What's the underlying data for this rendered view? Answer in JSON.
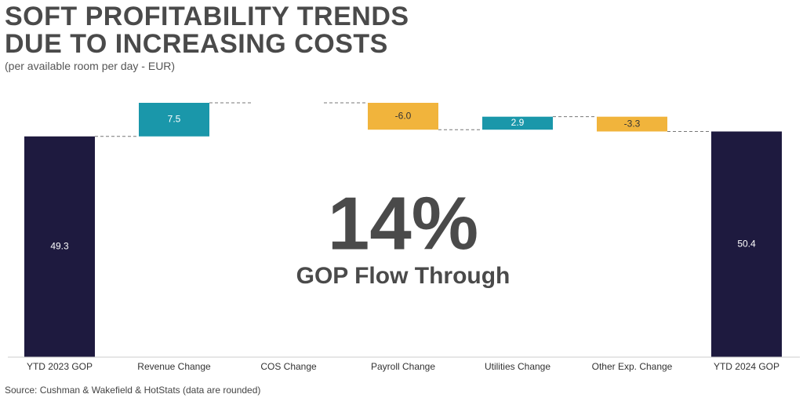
{
  "chart_data": {
    "type": "waterfall",
    "title": "SOFT PROFITABILITY TRENDS DUE TO INCREASING COSTS",
    "subtitle": "(per available room per day - EUR)",
    "categories": [
      "YTD 2023 GOP",
      "Revenue Change",
      "COS Change",
      "Payroll Change",
      "Utilities Change",
      "Other Exp. Change",
      "YTD 2024 GOP"
    ],
    "values": [
      49.3,
      7.5,
      0,
      -6.0,
      2.9,
      -3.3,
      50.4
    ],
    "value_labels": [
      "49.3",
      "7.5",
      null,
      "-6.0",
      "2.9",
      "-3.3",
      "50.4"
    ],
    "colors": [
      "#1e1a3f",
      "#1a97aa",
      "#f1b43c",
      "#f1b43c",
      "#1a97aa",
      "#f1b43c",
      "#1e1a3f"
    ],
    "annotation": {
      "value": "14%",
      "label": "GOP Flow Through"
    },
    "source": "Source: Cushman & Wakefield & HotStats (data are rounded)"
  }
}
